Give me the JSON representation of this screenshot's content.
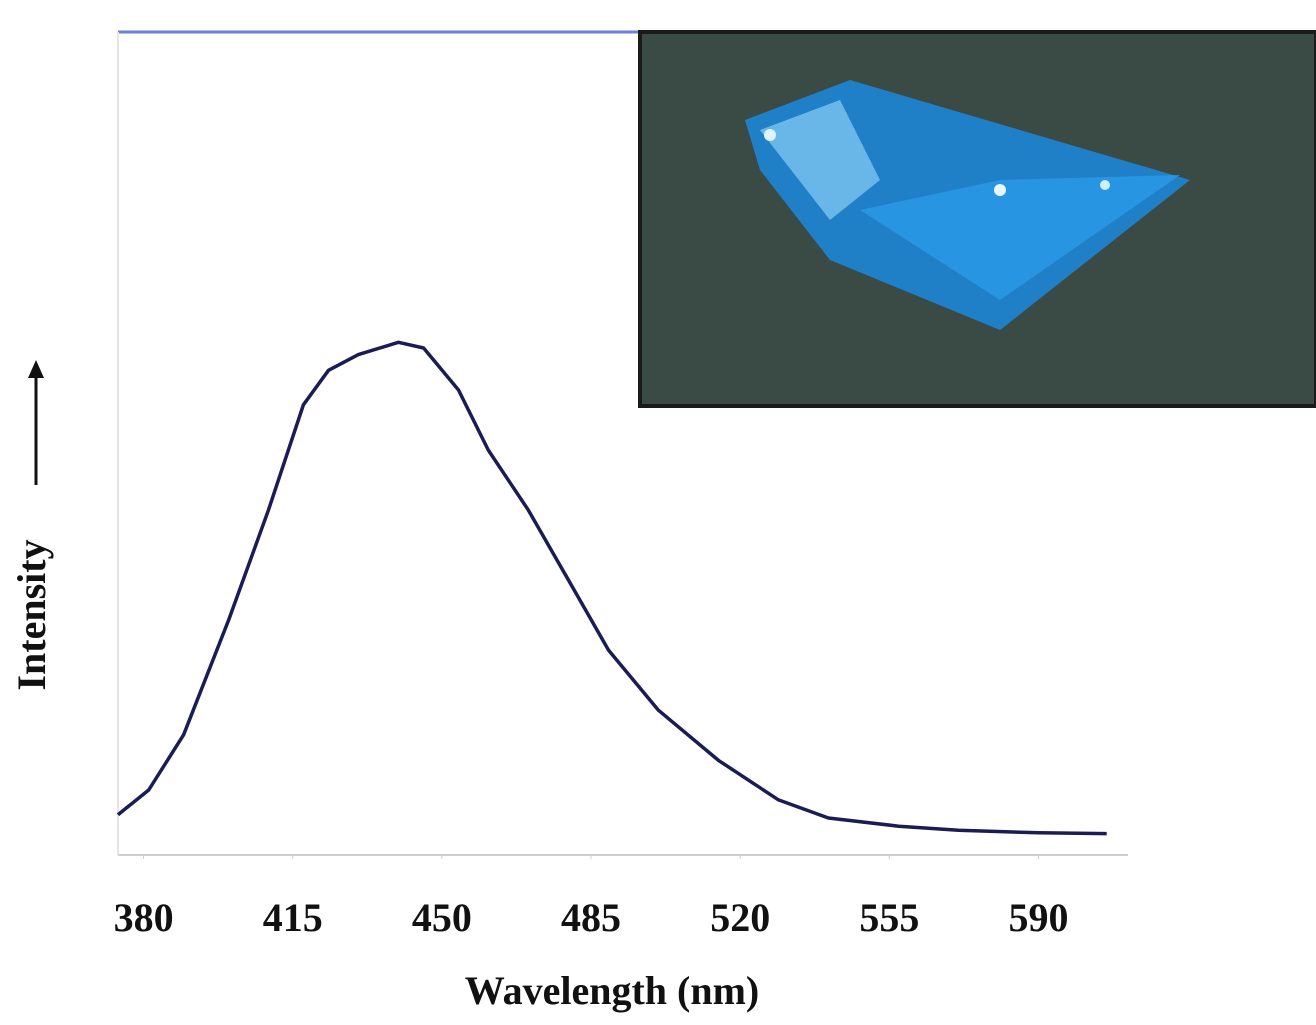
{
  "chart_data": {
    "type": "line",
    "x_label": "Wavelength (nm)",
    "y_label": "Intensity",
    "x": [
      374,
      381.2,
      389.4,
      400,
      409.3,
      417.5,
      423.4,
      430.4,
      439.8,
      445.7,
      453.9,
      460.9,
      470.3,
      479.7,
      489.1,
      500.8,
      514.9,
      529,
      540.7,
      557.2,
      571.2,
      590,
      606
    ],
    "values": [
      4.9,
      7.9,
      14.6,
      28.6,
      41.9,
      54.7,
      58.9,
      60.8,
      62.3,
      61.6,
      56.5,
      49.2,
      41.9,
      33.4,
      24.9,
      17.6,
      11.5,
      6.7,
      4.5,
      3.5,
      3.0,
      2.7,
      2.6
    ],
    "color": "#1c1c55",
    "xlim": [
      374,
      611
    ],
    "ylim": [
      0,
      100
    ],
    "xticks": [
      380,
      415,
      450,
      485,
      520,
      555,
      590
    ]
  }
}
